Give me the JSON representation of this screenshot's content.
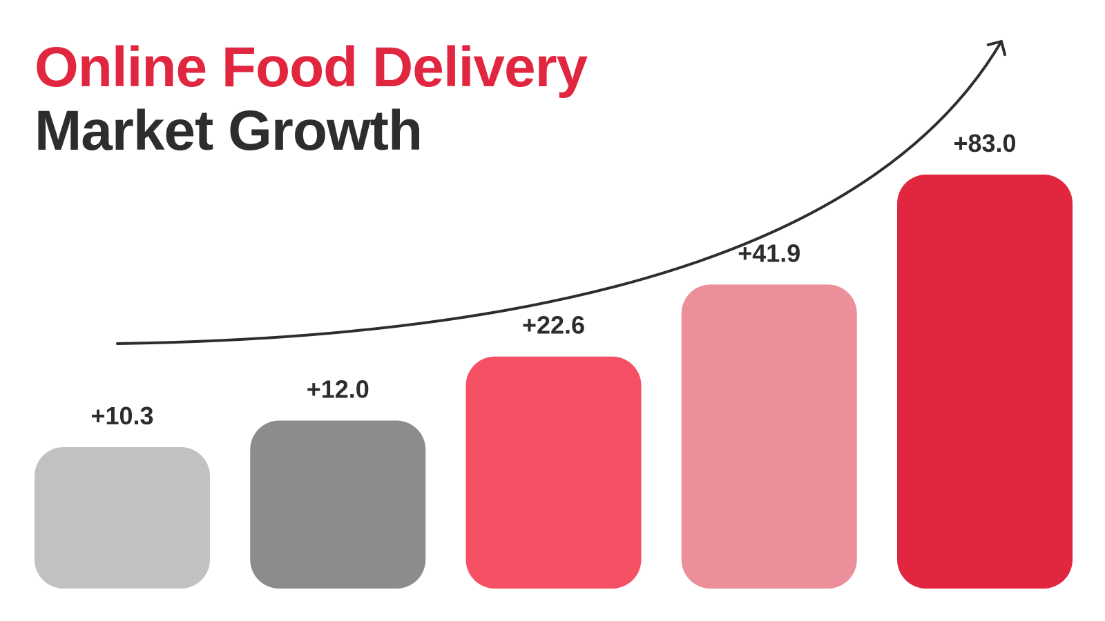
{
  "title": {
    "line1": "Online Food Delivery",
    "line2": "Market Growth"
  },
  "colors": {
    "title_accent": "#e1263f",
    "title_dark": "#2d2d2d",
    "arrow": "#2d2d2d"
  },
  "chart_data": {
    "type": "bar",
    "categories": [
      "",
      "",
      "",
      "",
      ""
    ],
    "values": [
      10.3,
      12.0,
      22.6,
      41.9,
      83.0
    ],
    "data_labels": [
      "+10.3",
      "+12.0",
      "+22.6",
      "+41.9",
      "+83.0"
    ],
    "colors": [
      "#c1c1c1",
      "#8c8c8c",
      "#f65064",
      "#eb8f9a",
      "#e1263f"
    ],
    "title": "Online Food Delivery Market Growth",
    "xlabel": "",
    "ylabel": "",
    "grid": false,
    "legend": "none",
    "trend_arrow": true
  }
}
